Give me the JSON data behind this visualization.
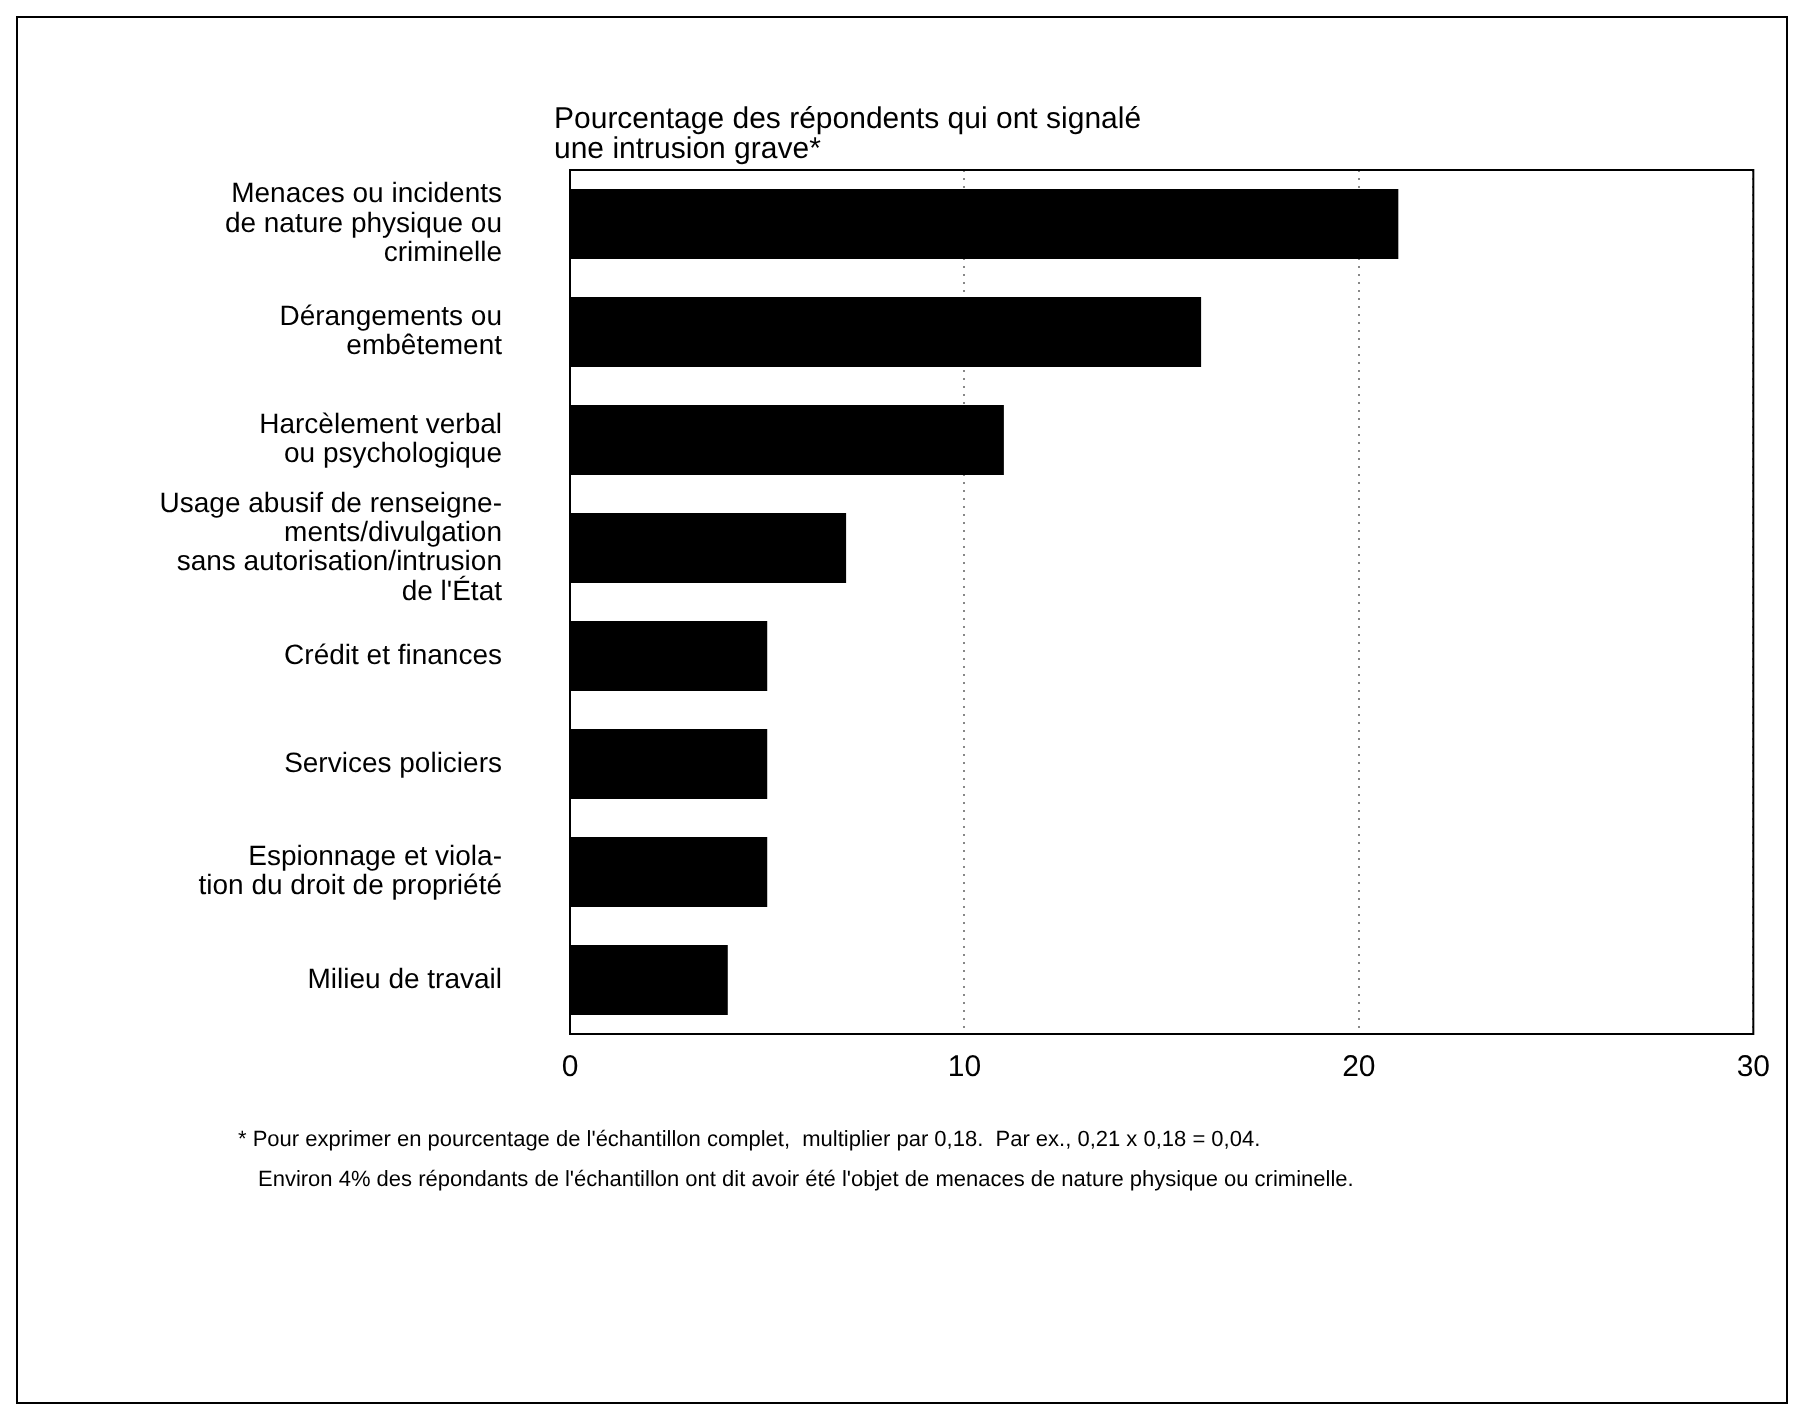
{
  "chart_data": {
    "type": "bar",
    "orientation": "horizontal",
    "title": "Pourcentage des répondents qui ont signalé\nune intrusion grave*",
    "categories": [
      "Menaces ou incidents\nde nature physique ou\ncriminelle",
      "Dérangements ou\nembêtement",
      "Harcèlement verbal\nou psychologique",
      "Usage abusif de renseigne-\nments/divulgation\nsans autorisation/intrusion\nde l'État",
      "Crédit et finances",
      "Services policiers",
      "Espionnage et viola-\ntion du droit de propriété",
      "Milieu de travail"
    ],
    "values": [
      21,
      16,
      11,
      7,
      5,
      5,
      5,
      4
    ],
    "color": "#000000",
    "xlim": [
      0,
      30
    ],
    "xticks": [
      0,
      10,
      20,
      30
    ],
    "grid": "x",
    "annotations": [
      "* Pour exprimer en pourcentage de l'échantillon complet,  multiplier par 0,18.  Par ex., 0,21 x 0,18 = 0,04.",
      "Environ 4% des répondants de l'échantillon ont dit avoir été l'objet de menaces de nature physique ou criminelle."
    ]
  }
}
